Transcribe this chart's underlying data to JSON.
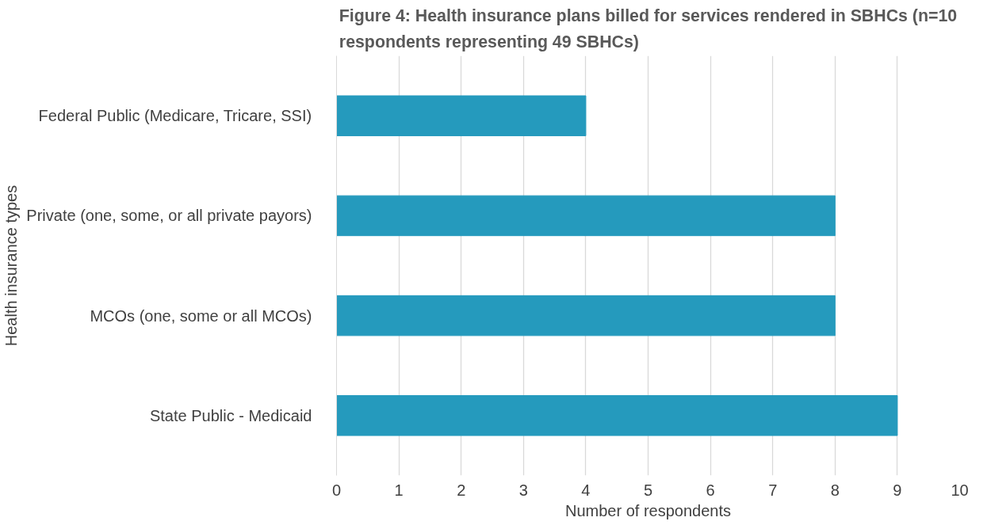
{
  "chart_data": {
    "type": "bar",
    "orientation": "horizontal",
    "title": "Figure 4: Health insurance plans billed for services rendered in SBHCs (n=10 respondents representing 49 SBHCs)",
    "xlabel": "Number of respondents",
    "ylabel": "Health insurance types",
    "categories": [
      "Federal Public (Medicare, Tricare, SSI)",
      "Private (one, some, or all private payors)",
      "MCOs (one, some or all MCOs)",
      "State Public - Medicaid"
    ],
    "values": [
      4,
      8,
      8,
      9
    ],
    "color": "#259abd",
    "xlim": [
      0,
      10
    ],
    "xticks": [
      0,
      1,
      2,
      3,
      4,
      5,
      6,
      7,
      8,
      9,
      10
    ],
    "grid": "x"
  }
}
